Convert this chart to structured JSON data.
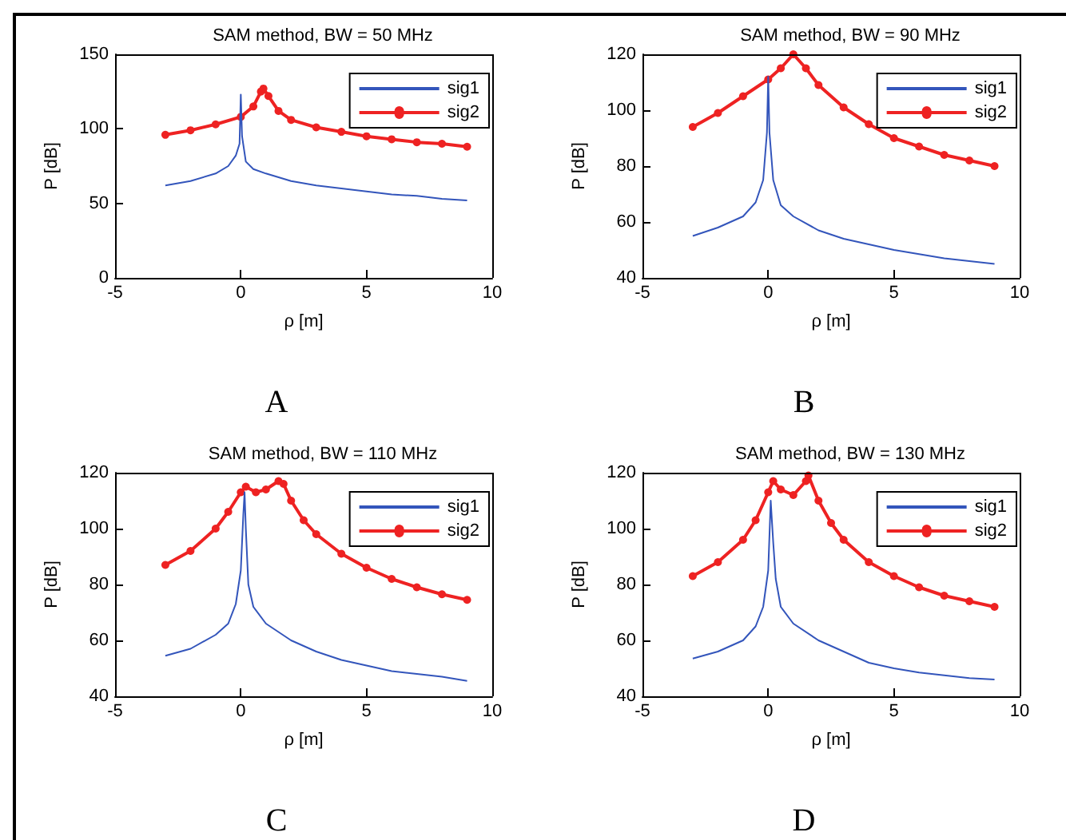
{
  "chart_data": [
    {
      "type": "line",
      "title": "SAM method, BW = 50 MHz",
      "xlabel": "ρ [m]",
      "ylabel": "P [dB]",
      "annotations": [
        "A"
      ],
      "xlim": [
        -5,
        10
      ],
      "xticks": [
        -5,
        0,
        5,
        10
      ],
      "ylim": [
        0,
        150
      ],
      "yticks": [
        0,
        50,
        100,
        150
      ],
      "grid": false,
      "legend": "top right",
      "series": [
        {
          "name": "sig1",
          "color": "#3355bb",
          "marker": "none",
          "x": [
            -3,
            -2,
            -1,
            -0.5,
            -0.2,
            -0.05,
            0,
            0.05,
            0.2,
            0.5,
            1,
            2,
            3,
            4,
            5,
            6,
            7,
            8,
            9
          ],
          "values": [
            62,
            65,
            70,
            75,
            82,
            90,
            123,
            95,
            78,
            73,
            70,
            65,
            62,
            60,
            58,
            56,
            55,
            53,
            52
          ]
        },
        {
          "name": "sig2",
          "color": "#ee2222",
          "marker": "circle",
          "x": [
            -3,
            -2,
            -1,
            0,
            0.5,
            0.8,
            0.9,
            1.1,
            1.5,
            2,
            3,
            4,
            5,
            6,
            7,
            8,
            9
          ],
          "values": [
            96,
            99,
            103,
            108,
            115,
            125,
            127,
            122,
            112,
            106,
            101,
            98,
            95,
            93,
            91,
            90,
            88
          ]
        }
      ]
    },
    {
      "type": "line",
      "title": "SAM method, BW = 90 MHz",
      "xlabel": "ρ [m]",
      "ylabel": "P [dB]",
      "annotations": [
        "B"
      ],
      "xlim": [
        -5,
        10
      ],
      "xticks": [
        -5,
        0,
        5,
        10
      ],
      "ylim": [
        40,
        120
      ],
      "yticks": [
        40,
        60,
        80,
        100,
        120
      ],
      "grid": false,
      "legend": "top right",
      "series": [
        {
          "name": "sig1",
          "color": "#3355bb",
          "marker": "none",
          "x": [
            -3,
            -2,
            -1,
            -0.5,
            -0.2,
            -0.05,
            0,
            0.05,
            0.2,
            0.5,
            1,
            2,
            3,
            4,
            5,
            6,
            7,
            8,
            9
          ],
          "values": [
            55,
            58,
            62,
            67,
            75,
            92,
            112,
            92,
            75,
            66,
            62,
            57,
            54,
            52,
            50,
            48.5,
            47,
            46,
            45
          ]
        },
        {
          "name": "sig2",
          "color": "#ee2222",
          "marker": "circle",
          "x": [
            -3,
            -2,
            -1,
            0,
            0.5,
            1,
            1.5,
            2,
            3,
            4,
            5,
            6,
            7,
            8,
            9
          ],
          "values": [
            94,
            99,
            105,
            111,
            115,
            120,
            115,
            109,
            101,
            95,
            90,
            87,
            84,
            82,
            80
          ]
        }
      ]
    },
    {
      "type": "line",
      "title": "SAM method, BW = 110 MHz",
      "xlabel": "ρ [m]",
      "ylabel": "P [dB]",
      "annotations": [
        "C"
      ],
      "xlim": [
        -5,
        10
      ],
      "xticks": [
        -5,
        0,
        5,
        10
      ],
      "ylim": [
        40,
        120
      ],
      "yticks": [
        40,
        60,
        80,
        100,
        120
      ],
      "grid": false,
      "legend": "top right",
      "series": [
        {
          "name": "sig1",
          "color": "#3355bb",
          "marker": "none",
          "x": [
            -3,
            -2,
            -1,
            -0.5,
            -0.2,
            0,
            0.1,
            0.15,
            0.2,
            0.3,
            0.5,
            1,
            2,
            3,
            4,
            5,
            6,
            7,
            8,
            9
          ],
          "values": [
            54.5,
            57,
            62,
            66,
            73,
            85,
            105,
            113,
            100,
            80,
            72,
            66,
            60,
            56,
            53,
            51,
            49,
            48,
            47,
            45.5
          ]
        },
        {
          "name": "sig2",
          "color": "#ee2222",
          "marker": "circle",
          "x": [
            -3,
            -2,
            -1,
            -0.5,
            0,
            0.2,
            0.6,
            1,
            1.5,
            1.7,
            2,
            2.5,
            3,
            4,
            5,
            6,
            7,
            8,
            9
          ],
          "values": [
            87,
            92,
            100,
            106,
            113,
            115,
            113,
            114,
            117,
            116,
            110,
            103,
            98,
            91,
            86,
            82,
            79,
            76.5,
            74.5
          ]
        }
      ]
    },
    {
      "type": "line",
      "title": "SAM method, BW = 130 MHz",
      "xlabel": "ρ [m]",
      "ylabel": "P [dB]",
      "annotations": [
        "D"
      ],
      "xlim": [
        -5,
        10
      ],
      "xticks": [
        -5,
        0,
        5,
        10
      ],
      "ylim": [
        40,
        120
      ],
      "yticks": [
        40,
        60,
        80,
        100,
        120
      ],
      "grid": false,
      "legend": "top right",
      "series": [
        {
          "name": "sig1",
          "color": "#3355bb",
          "marker": "none",
          "x": [
            -3,
            -2,
            -1,
            -0.5,
            -0.2,
            0,
            0.1,
            0.2,
            0.3,
            0.5,
            1,
            2,
            3,
            4,
            5,
            6,
            7,
            8,
            9
          ],
          "values": [
            53.5,
            56,
            60,
            65,
            72,
            85,
            110,
            95,
            82,
            72,
            66,
            60,
            56,
            52,
            50,
            48.5,
            47.5,
            46.5,
            46
          ]
        },
        {
          "name": "sig2",
          "color": "#ee2222",
          "marker": "circle",
          "x": [
            -3,
            -2,
            -1,
            -0.5,
            0,
            0.2,
            0.5,
            1,
            1.5,
            1.6,
            2,
            2.5,
            3,
            4,
            5,
            6,
            7,
            8,
            9
          ],
          "values": [
            83,
            88,
            96,
            103,
            113,
            117,
            114,
            112,
            117,
            119,
            110,
            102,
            96,
            88,
            83,
            79,
            76,
            74,
            72
          ]
        }
      ]
    }
  ]
}
